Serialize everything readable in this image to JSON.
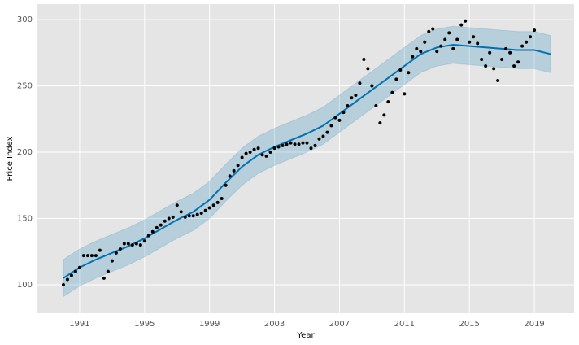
{
  "chart_data": {
    "type": "forecast",
    "x_label": "Year",
    "y_label": "Price Index",
    "xlim": [
      1988.4,
      2021.45
    ],
    "ylim": [
      78.5,
      311.7
    ],
    "xticks": [
      1991,
      1995,
      1999,
      2003,
      2007,
      2011,
      2015,
      2019
    ],
    "yticks": [
      100,
      150,
      200,
      250,
      300
    ],
    "grid": true,
    "background": "#e5e5e5",
    "observed": {
      "color": "#000000",
      "x": [
        1990.0,
        1990.25,
        1990.5,
        1990.75,
        1991.0,
        1991.25,
        1991.5,
        1991.75,
        1992.0,
        1992.25,
        1992.5,
        1992.75,
        1993.0,
        1993.25,
        1993.5,
        1993.75,
        1994.0,
        1994.25,
        1994.5,
        1994.75,
        1995.0,
        1995.25,
        1995.5,
        1995.75,
        1996.0,
        1996.25,
        1996.5,
        1996.75,
        1997.0,
        1997.25,
        1997.5,
        1997.75,
        1998.0,
        1998.25,
        1998.5,
        1998.75,
        1999.0,
        1999.25,
        1999.5,
        1999.75,
        2000.0,
        2000.25,
        2000.5,
        2000.75,
        2001.0,
        2001.25,
        2001.5,
        2001.75,
        2002.0,
        2002.25,
        2002.5,
        2002.75,
        2003.0,
        2003.25,
        2003.5,
        2003.75,
        2004.0,
        2004.25,
        2004.5,
        2004.75,
        2005.0,
        2005.25,
        2005.5,
        2005.75,
        2006.0,
        2006.25,
        2006.5,
        2006.75,
        2007.0,
        2007.25,
        2007.5,
        2007.75,
        2008.0,
        2008.25,
        2008.5,
        2008.75,
        2009.0,
        2009.25,
        2009.5,
        2009.75,
        2010.0,
        2010.25,
        2010.5,
        2010.75,
        2011.0,
        2011.25,
        2011.5,
        2011.75,
        2012.0,
        2012.25,
        2012.5,
        2012.75,
        2013.0,
        2013.25,
        2013.5,
        2013.75,
        2014.0,
        2014.25,
        2014.5,
        2014.75,
        2015.0,
        2015.25,
        2015.5,
        2015.75,
        2016.0,
        2016.25,
        2016.5,
        2016.75,
        2017.0,
        2017.25,
        2017.5,
        2017.75,
        2018.0,
        2018.25,
        2018.5,
        2018.75,
        2019.0
      ],
      "values": [
        100,
        104,
        107,
        110,
        113,
        122,
        122,
        122,
        122,
        126,
        105,
        110,
        118,
        124,
        127,
        131,
        131,
        130,
        131,
        130,
        133,
        137,
        140,
        143,
        145,
        148,
        150,
        151,
        160,
        155,
        151,
        152,
        152,
        153,
        154,
        156,
        158,
        160,
        162,
        165,
        175,
        182,
        186,
        190,
        196,
        199,
        200,
        202,
        203,
        198,
        197,
        200,
        203,
        204,
        205,
        206,
        207,
        206,
        206,
        207,
        207,
        203,
        205,
        210,
        212,
        215,
        220,
        226,
        224,
        230,
        235,
        241,
        243,
        252,
        270,
        263,
        250,
        235,
        222,
        228,
        238,
        245,
        255,
        262,
        244,
        260,
        272,
        278,
        276,
        283,
        291,
        293,
        276,
        280,
        285,
        290,
        278,
        285,
        296,
        299,
        283,
        287,
        282,
        270,
        265,
        275,
        263,
        254,
        270,
        278,
        275,
        265,
        268,
        280,
        283,
        287,
        292
      ]
    },
    "forecast": {
      "color": "#0072b2",
      "band_color": "#0072b2",
      "x": [
        1990,
        1991,
        1992,
        1993,
        1994,
        1995,
        1996,
        1997,
        1998,
        1999,
        2000,
        2001,
        2002,
        2003,
        2004,
        2005,
        2006,
        2007,
        2008,
        2009,
        2010,
        2011,
        2012,
        2013,
        2014,
        2015,
        2016,
        2017,
        2018,
        2019,
        2020
      ],
      "values": [
        105,
        113,
        119,
        124,
        129,
        135,
        142,
        149,
        155,
        164,
        177,
        189,
        198,
        204,
        209,
        214,
        220,
        229,
        238,
        247,
        256,
        265,
        274,
        279,
        281,
        280,
        279,
        278,
        277,
        277,
        274
      ],
      "lower": [
        91,
        99,
        105,
        110,
        115,
        121,
        128,
        135,
        141,
        150,
        163,
        175,
        184,
        190,
        195,
        200,
        206,
        215,
        224,
        233,
        242,
        251,
        260,
        265,
        267,
        266,
        265,
        264,
        263,
        263,
        260
      ],
      "upper": [
        119,
        127,
        133,
        138,
        143,
        149,
        156,
        163,
        169,
        178,
        191,
        203,
        212,
        218,
        223,
        228,
        234,
        243,
        252,
        261,
        270,
        279,
        288,
        293,
        295,
        294,
        293,
        292,
        291,
        291,
        288
      ]
    }
  }
}
